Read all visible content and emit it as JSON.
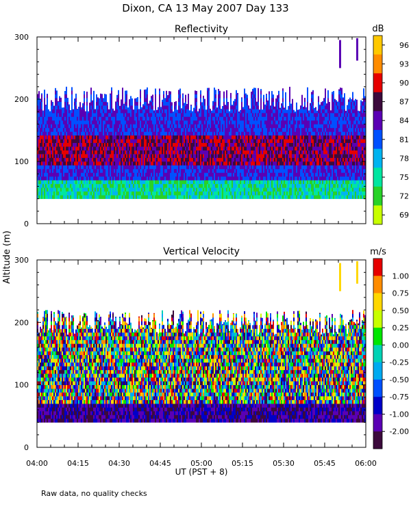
{
  "figure": {
    "title": "Dixon, CA 13 May 2007  Day 133",
    "y_axis_label": "Altitude (m)",
    "x_axis_label": "UT  (PST + 8)",
    "footnote": "Raw data, no quality checks"
  },
  "colors": {
    "reflectivity_scale": [
      "#c8ff00",
      "#28d228",
      "#00e6a0",
      "#00b4f0",
      "#0050ff",
      "#5a00b4",
      "#3c0a3c",
      "#e60000",
      "#ff8c00",
      "#ffc800"
    ],
    "velocity_scale": [
      "#3c0a3c",
      "#5a00b4",
      "#0000c8",
      "#0050ff",
      "#00aaf0",
      "#00d2b4",
      "#00e600",
      "#c8ff00",
      "#ffd700",
      "#ff8c00",
      "#e60000"
    ]
  },
  "chart_data": [
    {
      "type": "heatmap",
      "title": "Reflectivity",
      "x_label": "UT  (PST + 8)",
      "y_label": "Altitude (m)",
      "x_ticks": [
        "04:00",
        "04:15",
        "04:30",
        "04:45",
        "05:00",
        "05:15",
        "05:30",
        "05:45",
        "06:00"
      ],
      "x_range": [
        "04:00",
        "06:00"
      ],
      "y_ticks": [
        0,
        100,
        200,
        300
      ],
      "y_range": [
        0,
        300
      ],
      "colorbar": {
        "unit": "dB",
        "labels": [
          "96",
          "93",
          "90",
          "87",
          "84",
          "81",
          "78",
          "75",
          "72",
          "69"
        ]
      },
      "data_summary": {
        "data_altitude_range_m": [
          40,
          200
        ],
        "sparse_echoes_above_m": 200,
        "high_reflectivity_band_m": [
          90,
          140
        ]
      }
    },
    {
      "type": "heatmap",
      "title": "Vertical Velocity",
      "x_label": "UT  (PST + 8)",
      "y_label": "Altitude (m)",
      "x_ticks": [
        "04:00",
        "04:15",
        "04:30",
        "04:45",
        "05:00",
        "05:15",
        "05:30",
        "05:45",
        "06:00"
      ],
      "x_range": [
        "04:00",
        "06:00"
      ],
      "y_ticks": [
        0,
        100,
        200,
        300
      ],
      "y_range": [
        0,
        300
      ],
      "colorbar": {
        "unit": "m/s",
        "labels": [
          "1.00",
          "0.75",
          "0.50",
          "0.25",
          "0.00",
          "-0.25",
          "-0.50",
          "-0.75",
          "-1.00",
          "-2.00"
        ]
      },
      "data_summary": {
        "data_altitude_range_m": [
          40,
          200
        ]
      }
    }
  ]
}
